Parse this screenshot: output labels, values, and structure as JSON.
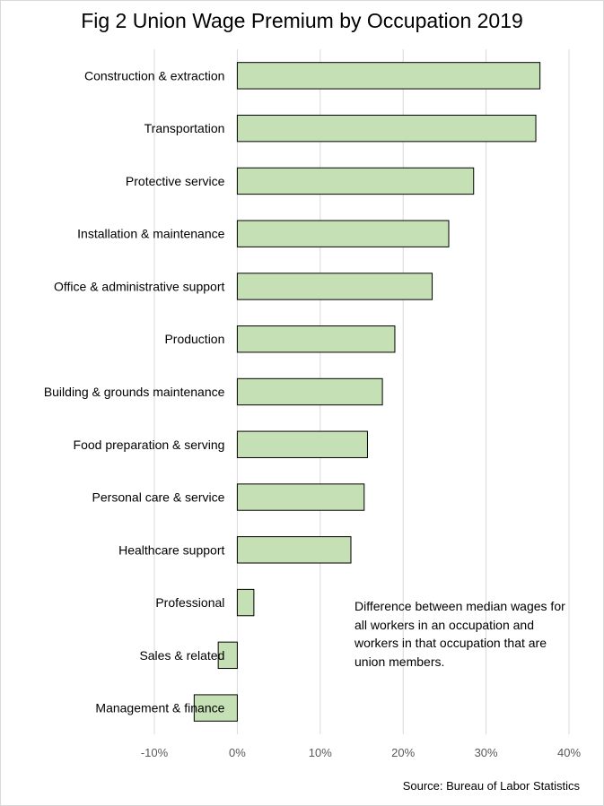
{
  "title": "Fig 2 Union Wage Premium by Occupation 2019",
  "note": "Difference between median wages for all workers in an occupation and workers in that occupation that are union members.",
  "source": "Source: Bureau of Labor Statistics",
  "colors": {
    "bar_fill": "#c5e0b4",
    "bar_stroke": "#000000",
    "grid": "#d9d9d9",
    "tick_text": "#595959"
  },
  "chart_data": {
    "type": "bar",
    "orientation": "horizontal",
    "categories": [
      "Construction & extraction",
      "Transportation",
      "Protective service",
      "Installation & maintenance",
      "Office & administrative support",
      "Production",
      "Building & grounds maintenance",
      "Food preparation & serving",
      "Personal care & service",
      "Healthcare support",
      "Professional",
      "Sales & related",
      "Management & finance"
    ],
    "values": [
      36.5,
      36.0,
      28.5,
      25.5,
      23.5,
      19.0,
      17.5,
      15.7,
      15.3,
      13.7,
      2.0,
      -2.3,
      -5.2
    ],
    "xlim": [
      -10,
      40
    ],
    "xticks": [
      -10,
      0,
      10,
      20,
      30,
      40
    ],
    "tick_labels": [
      "-10%",
      "0%",
      "10%",
      "20%",
      "30%",
      "40%"
    ],
    "grid": true,
    "legend": "none"
  }
}
